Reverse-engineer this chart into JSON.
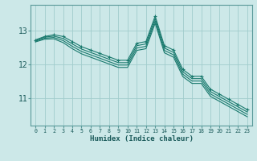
{
  "xlabel": "Humidex (Indice chaleur)",
  "bg_color": "#cce8e8",
  "grid_color": "#a0cccc",
  "line_color": "#1a7a6e",
  "x_data": [
    0,
    1,
    2,
    3,
    4,
    5,
    6,
    7,
    8,
    9,
    10,
    11,
    12,
    13,
    14,
    15,
    16,
    17,
    18,
    19,
    20,
    21,
    22,
    23
  ],
  "lines": [
    [
      12.72,
      12.82,
      12.87,
      12.82,
      12.67,
      12.52,
      12.42,
      12.32,
      12.22,
      12.12,
      12.12,
      12.62,
      12.67,
      13.42,
      12.55,
      12.42,
      11.85,
      11.65,
      11.65,
      11.27,
      11.12,
      10.97,
      10.82,
      10.67
    ],
    [
      12.7,
      12.8,
      12.83,
      12.76,
      12.6,
      12.45,
      12.35,
      12.25,
      12.15,
      12.05,
      12.05,
      12.55,
      12.6,
      13.35,
      12.48,
      12.35,
      11.78,
      11.58,
      11.58,
      11.2,
      11.05,
      10.9,
      10.75,
      10.6
    ],
    [
      12.68,
      12.77,
      12.79,
      12.7,
      12.53,
      12.38,
      12.28,
      12.18,
      12.08,
      11.98,
      11.98,
      12.48,
      12.53,
      13.28,
      12.41,
      12.28,
      11.71,
      11.51,
      11.51,
      11.13,
      10.98,
      10.83,
      10.68,
      10.53
    ],
    [
      12.66,
      12.74,
      12.75,
      12.64,
      12.46,
      12.31,
      12.21,
      12.11,
      12.01,
      11.91,
      11.91,
      12.41,
      12.46,
      13.21,
      12.34,
      12.21,
      11.64,
      11.44,
      11.44,
      11.06,
      10.91,
      10.76,
      10.61,
      10.46
    ]
  ],
  "yticks": [
    11,
    12,
    13
  ],
  "ylim": [
    10.2,
    13.75
  ],
  "xlim": [
    -0.5,
    23.5
  ],
  "figsize": [
    3.2,
    2.0
  ],
  "dpi": 100
}
